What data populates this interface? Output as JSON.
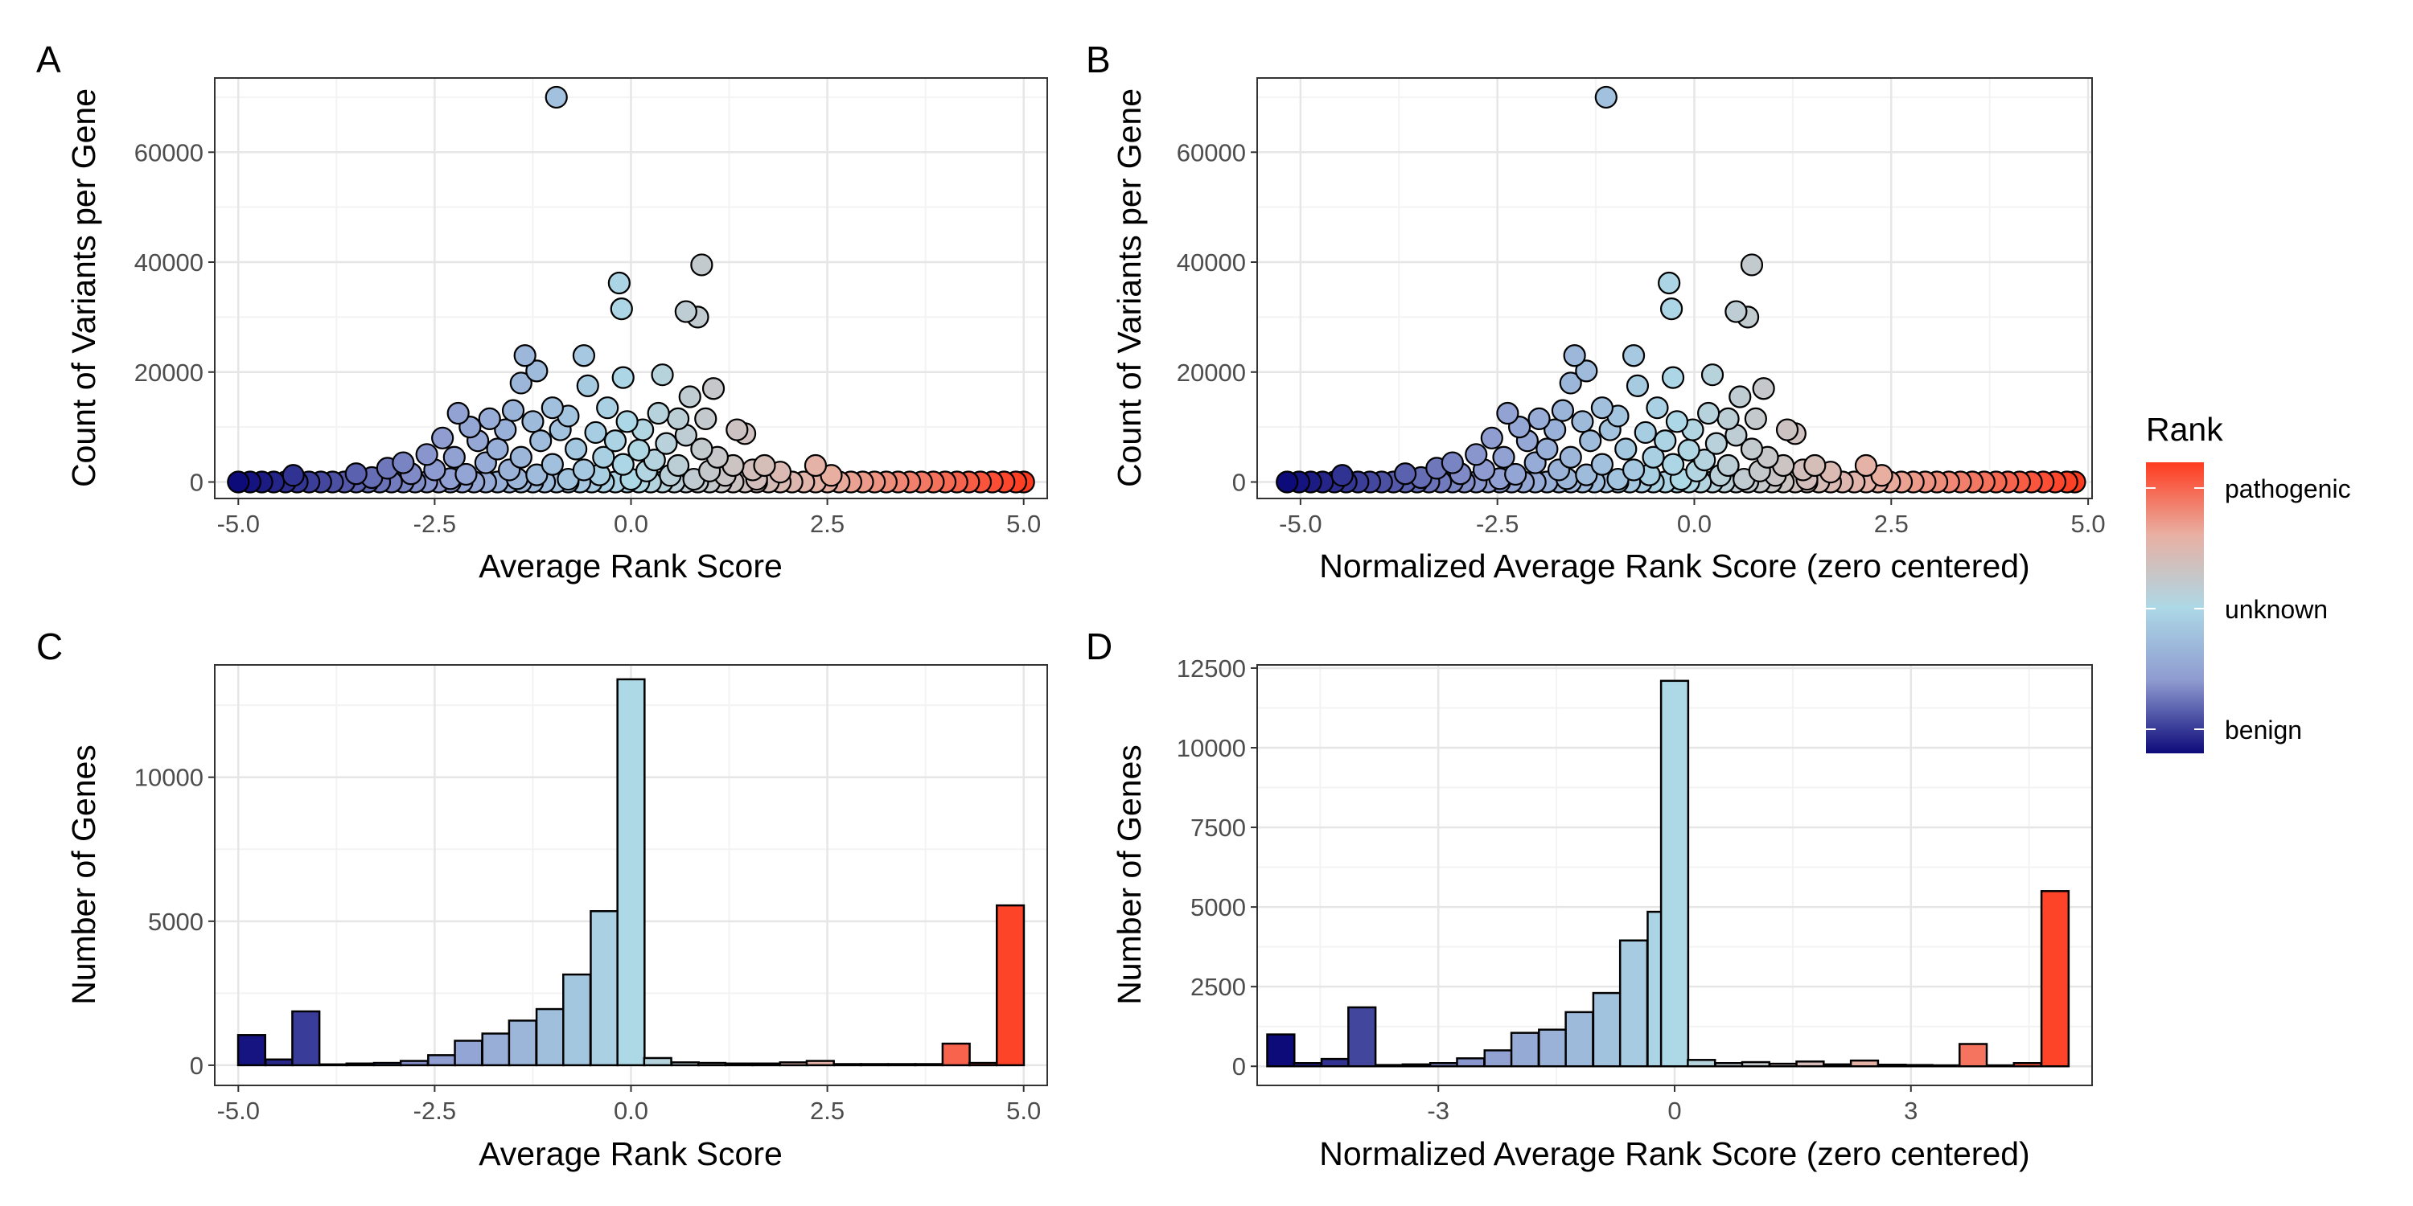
{
  "chart_data": [
    {
      "panel": "A",
      "type": "scatter",
      "xlabel": "Average Rank Score",
      "ylabel": "Count of Variants per Gene",
      "xlim": [
        -5.3,
        5.3
      ],
      "ylim": [
        -3000,
        73500
      ],
      "xticks": [
        -5.0,
        -2.5,
        0.0,
        2.5,
        5.0
      ],
      "xtick_labels": [
        "-5.0",
        "-2.5",
        "0.0",
        "2.5",
        "5.0"
      ],
      "yticks": [
        0,
        20000,
        40000,
        60000
      ],
      "ytick_labels": [
        "0",
        "20000",
        "40000",
        "60000"
      ],
      "grid": true,
      "points": [
        {
          "x": -0.95,
          "y": 70000
        },
        {
          "x": 0.9,
          "y": 39500
        },
        {
          "x": -0.15,
          "y": 36200
        },
        {
          "x": -0.12,
          "y": 31500
        },
        {
          "x": 0.7,
          "y": 31000
        },
        {
          "x": 0.85,
          "y": 30000
        },
        {
          "x": -1.35,
          "y": 23000
        },
        {
          "x": -0.6,
          "y": 23000
        },
        {
          "x": -1.2,
          "y": 20200
        },
        {
          "x": -0.1,
          "y": 19000
        },
        {
          "x": 0.4,
          "y": 19500
        },
        {
          "x": 1.05,
          "y": 17000
        },
        {
          "x": -1.4,
          "y": 18000
        },
        {
          "x": -0.55,
          "y": 17500
        },
        {
          "x": 0.75,
          "y": 15500
        },
        {
          "x": -1.0,
          "y": 13500
        },
        {
          "x": -1.5,
          "y": 13000
        },
        {
          "x": -0.3,
          "y": 13500
        },
        {
          "x": 0.35,
          "y": 12500
        },
        {
          "x": 0.95,
          "y": 11500
        },
        {
          "x": -2.2,
          "y": 12500
        },
        {
          "x": -1.8,
          "y": 11500
        },
        {
          "x": -1.25,
          "y": 11000
        },
        {
          "x": -0.05,
          "y": 11000
        },
        {
          "x": 0.6,
          "y": 11500
        },
        {
          "x": -0.8,
          "y": 12000
        },
        {
          "x": -2.05,
          "y": 10000
        },
        {
          "x": -1.6,
          "y": 9500
        },
        {
          "x": -0.9,
          "y": 9500
        },
        {
          "x": -0.45,
          "y": 9000
        },
        {
          "x": 0.15,
          "y": 9500
        },
        {
          "x": 0.7,
          "y": 8500
        },
        {
          "x": 1.35,
          "y": 9500
        },
        {
          "x": 1.45,
          "y": 8800
        },
        {
          "x": -2.4,
          "y": 8000
        },
        {
          "x": -1.95,
          "y": 7500
        },
        {
          "x": -1.15,
          "y": 7500
        },
        {
          "x": -0.2,
          "y": 7500
        },
        {
          "x": 0.45,
          "y": 7000
        },
        {
          "x": -1.7,
          "y": 6000
        },
        {
          "x": -0.7,
          "y": 6000
        },
        {
          "x": 0.1,
          "y": 5800
        },
        {
          "x": 0.9,
          "y": 6000
        },
        {
          "x": -2.6,
          "y": 5000
        },
        {
          "x": -2.25,
          "y": 4500
        },
        {
          "x": -1.4,
          "y": 4500
        },
        {
          "x": -0.35,
          "y": 4500
        },
        {
          "x": 0.3,
          "y": 4000
        },
        {
          "x": 1.1,
          "y": 4500
        },
        {
          "x": -2.9,
          "y": 3500
        },
        {
          "x": -1.85,
          "y": 3500
        },
        {
          "x": -1.0,
          "y": 3200
        },
        {
          "x": -0.1,
          "y": 3200
        },
        {
          "x": 0.6,
          "y": 3000
        },
        {
          "x": 1.3,
          "y": 3000
        },
        {
          "x": 1.7,
          "y": 3000
        },
        {
          "x": 2.35,
          "y": 3000
        },
        {
          "x": -3.1,
          "y": 2500
        },
        {
          "x": -2.5,
          "y": 2200
        },
        {
          "x": -1.55,
          "y": 2200
        },
        {
          "x": -0.6,
          "y": 2200
        },
        {
          "x": 0.2,
          "y": 2000
        },
        {
          "x": 1.0,
          "y": 2000
        },
        {
          "x": 1.55,
          "y": 2200
        },
        {
          "x": 1.9,
          "y": 1800
        },
        {
          "x": -3.5,
          "y": 1500
        },
        {
          "x": -2.8,
          "y": 1500
        },
        {
          "x": -2.1,
          "y": 1400
        },
        {
          "x": -1.2,
          "y": 1300
        },
        {
          "x": -0.4,
          "y": 1300
        },
        {
          "x": 0.5,
          "y": 1200
        },
        {
          "x": 1.2,
          "y": 1200
        },
        {
          "x": 2.55,
          "y": 1200
        },
        {
          "x": -4.3,
          "y": 1200
        },
        {
          "x": -3.3,
          "y": 800
        },
        {
          "x": -2.3,
          "y": 600
        },
        {
          "x": -1.45,
          "y": 600
        },
        {
          "x": -0.8,
          "y": 500
        },
        {
          "x": 0.0,
          "y": 500
        },
        {
          "x": 0.8,
          "y": 500
        },
        {
          "x": 1.6,
          "y": 500
        },
        {
          "x": -5.0,
          "y": 0
        },
        {
          "x": -4.85,
          "y": 0
        },
        {
          "x": -4.7,
          "y": 0
        },
        {
          "x": -4.55,
          "y": 0
        },
        {
          "x": -4.4,
          "y": 0
        },
        {
          "x": -4.25,
          "y": 0
        },
        {
          "x": -4.1,
          "y": 0
        },
        {
          "x": -3.95,
          "y": 0
        },
        {
          "x": -3.8,
          "y": 0
        },
        {
          "x": -3.65,
          "y": 0
        },
        {
          "x": -3.5,
          "y": 0
        },
        {
          "x": -3.35,
          "y": 0
        },
        {
          "x": -3.2,
          "y": 0
        },
        {
          "x": -3.05,
          "y": 0
        },
        {
          "x": -2.9,
          "y": 0
        },
        {
          "x": -2.75,
          "y": 0
        },
        {
          "x": -2.6,
          "y": 0
        },
        {
          "x": -2.45,
          "y": 0
        },
        {
          "x": -2.3,
          "y": 0
        },
        {
          "x": -2.15,
          "y": 0
        },
        {
          "x": -2.0,
          "y": 0
        },
        {
          "x": -1.85,
          "y": 0
        },
        {
          "x": -1.7,
          "y": 0
        },
        {
          "x": -1.55,
          "y": 0
        },
        {
          "x": -1.4,
          "y": 0
        },
        {
          "x": -1.25,
          "y": 0
        },
        {
          "x": -1.1,
          "y": 0
        },
        {
          "x": -0.95,
          "y": 0
        },
        {
          "x": -0.8,
          "y": 0
        },
        {
          "x": -0.65,
          "y": 0
        },
        {
          "x": -0.5,
          "y": 0
        },
        {
          "x": -0.35,
          "y": 0
        },
        {
          "x": -0.2,
          "y": 0
        },
        {
          "x": -0.05,
          "y": 0
        },
        {
          "x": 0.1,
          "y": 0
        },
        {
          "x": 0.25,
          "y": 0
        },
        {
          "x": 0.4,
          "y": 0
        },
        {
          "x": 0.55,
          "y": 0
        },
        {
          "x": 0.7,
          "y": 0
        },
        {
          "x": 0.85,
          "y": 0
        },
        {
          "x": 1.0,
          "y": 0
        },
        {
          "x": 1.15,
          "y": 0
        },
        {
          "x": 1.3,
          "y": 0
        },
        {
          "x": 1.45,
          "y": 0
        },
        {
          "x": 1.6,
          "y": 0
        },
        {
          "x": 1.75,
          "y": 0
        },
        {
          "x": 1.9,
          "y": 0
        },
        {
          "x": 2.05,
          "y": 0
        },
        {
          "x": 2.2,
          "y": 0
        },
        {
          "x": 2.35,
          "y": 0
        },
        {
          "x": 2.5,
          "y": 0
        },
        {
          "x": 2.65,
          "y": 0
        },
        {
          "x": 2.8,
          "y": 0
        },
        {
          "x": 2.95,
          "y": 0
        },
        {
          "x": 3.1,
          "y": 0
        },
        {
          "x": 3.25,
          "y": 0
        },
        {
          "x": 3.4,
          "y": 0
        },
        {
          "x": 3.55,
          "y": 0
        },
        {
          "x": 3.7,
          "y": 0
        },
        {
          "x": 3.85,
          "y": 0
        },
        {
          "x": 4.0,
          "y": 0
        },
        {
          "x": 4.15,
          "y": 0
        },
        {
          "x": 4.3,
          "y": 0
        },
        {
          "x": 4.45,
          "y": 0
        },
        {
          "x": 4.6,
          "y": 0
        },
        {
          "x": 4.75,
          "y": 0
        },
        {
          "x": 4.9,
          "y": 0
        },
        {
          "x": 5.0,
          "y": 0
        }
      ]
    },
    {
      "panel": "B",
      "type": "scatter",
      "xlabel": "Normalized Average Rank Score (zero centered)",
      "ylabel": "Count of Variants per Gene",
      "xlim": [
        -5.55,
        5.05
      ],
      "ylim": [
        -3000,
        73500
      ],
      "xticks": [
        -5.0,
        -2.5,
        0.0,
        2.5,
        5.0
      ],
      "xtick_labels": [
        "-5.0",
        "-2.5",
        "0.0",
        "2.5",
        "5.0"
      ],
      "yticks": [
        0,
        20000,
        40000,
        60000
      ],
      "ytick_labels": [
        "0",
        "20000",
        "40000",
        "60000"
      ],
      "grid": true,
      "x_shift_from_A": -0.17
    },
    {
      "panel": "C",
      "type": "bar",
      "xlabel": "Average Rank Score",
      "ylabel": "Number of Genes",
      "xlim": [
        -5.3,
        5.3
      ],
      "ylim": [
        -700,
        13900
      ],
      "xticks": [
        -5.0,
        -2.5,
        0.0,
        2.5,
        5.0
      ],
      "xtick_labels": [
        "-5.0",
        "-2.5",
        "0.0",
        "2.5",
        "5.0"
      ],
      "yticks": [
        0,
        5000,
        10000
      ],
      "ytick_labels": [
        "0",
        "5000",
        "10000"
      ],
      "grid": true,
      "bin_width": 0.345,
      "bins": [
        {
          "x": -4.83,
          "value": 1050
        },
        {
          "x": -4.48,
          "value": 200
        },
        {
          "x": -4.14,
          "value": 1870
        },
        {
          "x": -3.79,
          "value": 30
        },
        {
          "x": -3.45,
          "value": 60
        },
        {
          "x": -3.1,
          "value": 80
        },
        {
          "x": -2.76,
          "value": 150
        },
        {
          "x": -2.41,
          "value": 350
        },
        {
          "x": -2.07,
          "value": 850
        },
        {
          "x": -1.72,
          "value": 1100
        },
        {
          "x": -1.38,
          "value": 1550
        },
        {
          "x": -1.03,
          "value": 1950
        },
        {
          "x": -0.69,
          "value": 3150
        },
        {
          "x": -0.34,
          "value": 5350
        },
        {
          "x": 0.0,
          "value": 13400
        },
        {
          "x": 0.34,
          "value": 250
        },
        {
          "x": 0.69,
          "value": 100
        },
        {
          "x": 1.03,
          "value": 80
        },
        {
          "x": 1.38,
          "value": 60
        },
        {
          "x": 1.72,
          "value": 60
        },
        {
          "x": 2.07,
          "value": 100
        },
        {
          "x": 2.41,
          "value": 150
        },
        {
          "x": 2.76,
          "value": 40
        },
        {
          "x": 3.1,
          "value": 40
        },
        {
          "x": 3.45,
          "value": 40
        },
        {
          "x": 3.79,
          "value": 40
        },
        {
          "x": 4.14,
          "value": 750
        },
        {
          "x": 4.48,
          "value": 80
        },
        {
          "x": 4.83,
          "value": 5550
        }
      ]
    },
    {
      "panel": "D",
      "type": "bar",
      "xlabel": "Normalized Average Rank Score (zero centered)",
      "ylabel": "Number of Genes",
      "xlim": [
        -5.3,
        5.3
      ],
      "ylim": [
        -600,
        12600
      ],
      "xticks": [
        -3,
        0,
        3
      ],
      "xtick_labels": [
        "-3",
        "0",
        "3"
      ],
      "yticks": [
        0,
        2500,
        5000,
        7500,
        10000,
        12500
      ],
      "ytick_labels": [
        "0",
        "2500",
        "5000",
        "7500",
        "10000",
        "12500"
      ],
      "grid": true,
      "bin_width": 0.345,
      "bins": [
        {
          "x": -5.0,
          "value": 1000
        },
        {
          "x": -4.66,
          "value": 100
        },
        {
          "x": -4.31,
          "value": 230
        },
        {
          "x": -3.97,
          "value": 1850
        },
        {
          "x": -3.62,
          "value": 40
        },
        {
          "x": -3.28,
          "value": 60
        },
        {
          "x": -2.93,
          "value": 100
        },
        {
          "x": -2.59,
          "value": 250
        },
        {
          "x": -2.24,
          "value": 500
        },
        {
          "x": -1.9,
          "value": 1050
        },
        {
          "x": -1.55,
          "value": 1150
        },
        {
          "x": -1.21,
          "value": 1700
        },
        {
          "x": -0.86,
          "value": 2300
        },
        {
          "x": -0.52,
          "value": 3950
        },
        {
          "x": -0.17,
          "value": 4850
        },
        {
          "x": 0.0,
          "value": 12100
        },
        {
          "x": 0.34,
          "value": 200
        },
        {
          "x": 0.69,
          "value": 100
        },
        {
          "x": 1.03,
          "value": 130
        },
        {
          "x": 1.38,
          "value": 80
        },
        {
          "x": 1.72,
          "value": 150
        },
        {
          "x": 2.07,
          "value": 60
        },
        {
          "x": 2.41,
          "value": 180
        },
        {
          "x": 2.76,
          "value": 50
        },
        {
          "x": 3.1,
          "value": 40
        },
        {
          "x": 3.45,
          "value": 30
        },
        {
          "x": 3.79,
          "value": 700
        },
        {
          "x": 4.14,
          "value": 30
        },
        {
          "x": 4.48,
          "value": 100
        },
        {
          "x": 4.83,
          "value": 5500
        }
      ]
    }
  ],
  "panel_labels": {
    "a": "A",
    "b": "B",
    "c": "C",
    "d": "D"
  },
  "legend": {
    "title": "Rank",
    "labels": {
      "top": "pathogenic",
      "mid": "unknown",
      "bottom": "benign"
    },
    "colors": [
      "#0d0a7a",
      "#8e9bd0",
      "#add8e6",
      "#e8b0a3",
      "#ff3b1f"
    ]
  },
  "colors": {
    "panel_border": "#333333",
    "grid_major": "#ebebeb",
    "grid_minor": "#f5f5f5",
    "point_outline": "#000000"
  }
}
